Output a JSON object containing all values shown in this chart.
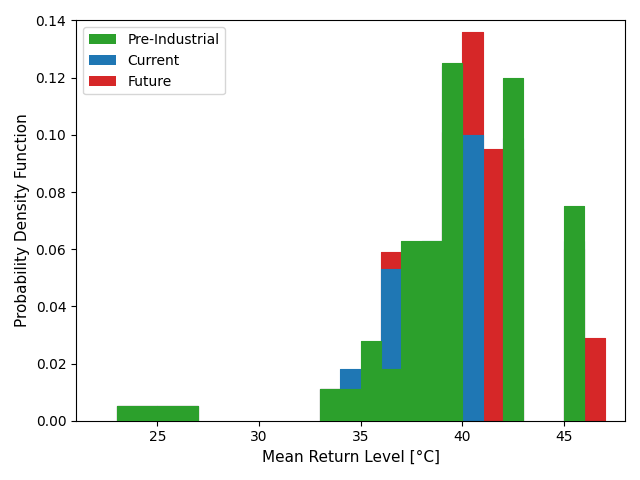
{
  "xlabel": "Mean Return Level [°C]",
  "ylabel": "Probability Density Function",
  "xlim": [
    21,
    48
  ],
  "ylim": [
    0,
    0.14
  ],
  "bin_edges": [
    23,
    24,
    25,
    26,
    27,
    32,
    33,
    34,
    35,
    36,
    37,
    38,
    39,
    40,
    41,
    42,
    43,
    44,
    45,
    46,
    47,
    48
  ],
  "pre_industrial": {
    "bin_edges": [
      23,
      25,
      27,
      32,
      33,
      34,
      35,
      36,
      37,
      38,
      39,
      40,
      42,
      43,
      44,
      45,
      46,
      47,
      48
    ],
    "values": [
      0.005,
      0.005,
      0,
      0,
      0.011,
      0.011,
      0.028,
      0.018,
      0.063,
      0.063,
      0.125,
      0,
      0.12,
      0,
      0,
      0.075,
      0,
      0,
      0
    ]
  },
  "current": {
    "bin_edges": [
      23,
      25,
      27,
      32,
      33,
      34,
      35,
      36,
      37,
      38,
      39,
      40,
      41,
      42,
      43,
      44,
      45,
      46,
      47,
      48
    ],
    "values": [
      0.005,
      0.005,
      0,
      0,
      0.011,
      0.018,
      0.018,
      0.053,
      0.05,
      0.063,
      0.124,
      0.1,
      0,
      0.099,
      0,
      0,
      0.063,
      0,
      0,
      0
    ]
  },
  "future": {
    "bin_edges": [
      23,
      25,
      27,
      32,
      33,
      34,
      35,
      36,
      37,
      38,
      39,
      40,
      41,
      42,
      43,
      44,
      45,
      46,
      47,
      48
    ],
    "values": [
      0.005,
      0.005,
      0,
      0,
      0.011,
      0.011,
      0.011,
      0.059,
      0.049,
      0.049,
      0.101,
      0.136,
      0.095,
      0.095,
      0,
      0,
      0.06,
      0.029,
      0,
      0
    ]
  },
  "colors": {
    "pre_industrial": "#2ca02c",
    "current": "#1f77b4",
    "future": "#d62728"
  },
  "legend_labels": [
    "Pre-Industrial",
    "Current",
    "Future"
  ],
  "xticks": [
    25,
    30,
    35,
    40,
    45
  ]
}
